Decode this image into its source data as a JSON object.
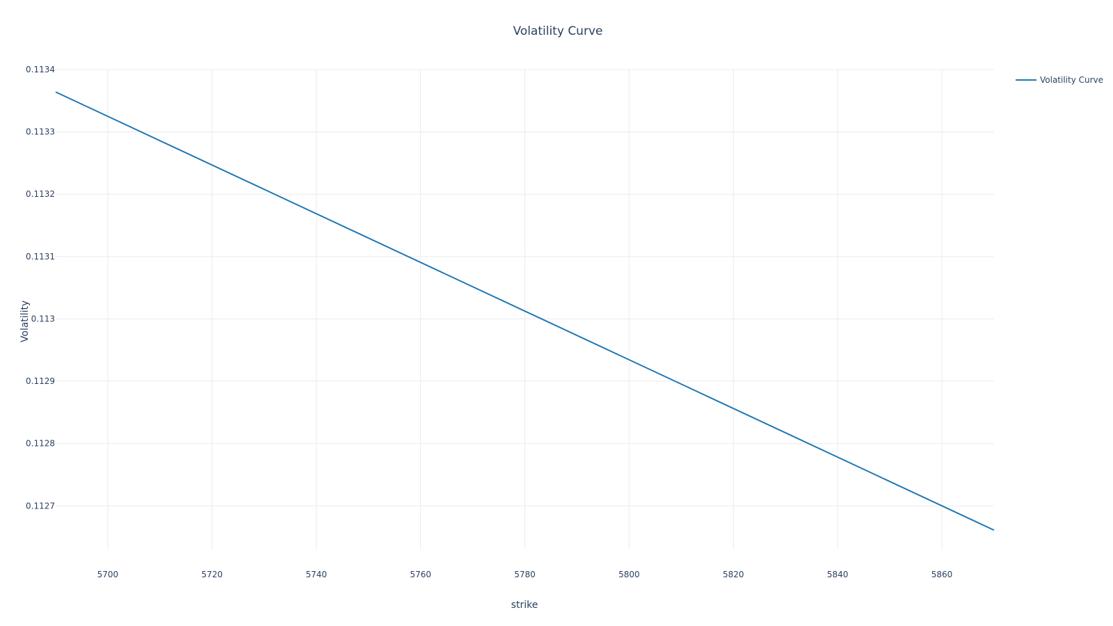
{
  "chart_data": {
    "type": "line",
    "title": "Volatility Curve",
    "xlabel": "strike",
    "ylabel": "Volatility",
    "xlim": [
      5690,
      5870
    ],
    "ylim": [
      0.11263,
      0.1134
    ],
    "x_ticks": [
      5700,
      5720,
      5740,
      5760,
      5780,
      5800,
      5820,
      5840,
      5860
    ],
    "y_ticks": [
      0.1127,
      0.1128,
      0.1129,
      0.113,
      0.1131,
      0.1132,
      0.1133,
      0.1134
    ],
    "y_tick_labels": [
      "0.1127",
      "0.1128",
      "0.1129",
      "0.113",
      "0.1131",
      "0.1132",
      "0.1133",
      "0.1134"
    ],
    "grid": true,
    "legend": "top-right",
    "colors": {
      "series": "#1f77b4",
      "grid": "#ebebeb",
      "text": "#2a3f5f"
    },
    "series": [
      {
        "name": "Volatility Curve",
        "x": [
          5690,
          5870
        ],
        "y": [
          0.113364,
          0.112661
        ]
      }
    ]
  }
}
